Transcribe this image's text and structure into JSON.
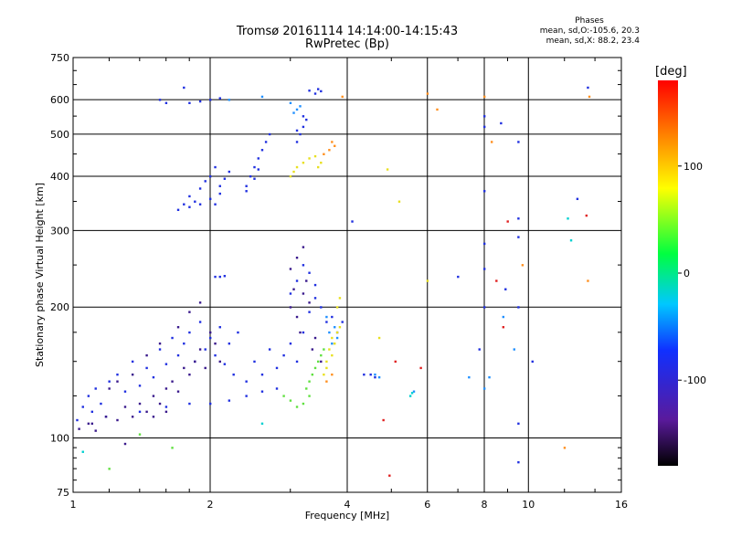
{
  "header": {
    "title_line1": "Tromsø 20161114 14:14:00-14:15:43",
    "title_line2": "RwPretec (Bp)"
  },
  "phases_box": {
    "title": "Phases",
    "line_o": "mean, sd,O:-105.6, 20.3",
    "line_x": "mean, sd,X:  88.2, 23.4"
  },
  "chart_data": {
    "type": "scatter",
    "xlabel": "Frequency [MHz]",
    "ylabel": "Stationary phase Virtual Height [km]",
    "x_scale": "log",
    "y_scale": "log",
    "xlim": [
      1,
      16
    ],
    "ylim": [
      75,
      750
    ],
    "x_ticks": [
      1,
      2,
      4,
      6,
      8,
      10,
      16
    ],
    "x_tick_labels": [
      "1",
      "2",
      "4",
      "6",
      "8",
      "10",
      "16"
    ],
    "y_ticks": [
      75,
      100,
      200,
      300,
      400,
      500,
      600,
      750
    ],
    "y_tick_labels": [
      "75",
      "100",
      "200",
      "300",
      "400",
      "500",
      "600",
      "750"
    ],
    "grid": true,
    "colorbar": {
      "label": "[deg]",
      "range": [
        -180,
        180
      ],
      "ticks": [
        100,
        0,
        -100
      ],
      "tick_labels": [
        "100",
        "0",
        "-100"
      ]
    },
    "series": [
      {
        "color": "#2030e0",
        "points": [
          [
            1.02,
            110
          ],
          [
            1.05,
            118
          ],
          [
            1.08,
            125
          ],
          [
            1.1,
            115
          ],
          [
            1.12,
            130
          ],
          [
            1.15,
            120
          ],
          [
            1.18,
            112
          ],
          [
            1.2,
            135
          ],
          [
            1.25,
            140
          ],
          [
            1.3,
            128
          ],
          [
            1.35,
            150
          ],
          [
            1.4,
            132
          ],
          [
            1.45,
            145
          ],
          [
            1.5,
            138
          ],
          [
            1.55,
            160
          ],
          [
            1.6,
            148
          ],
          [
            1.65,
            170
          ],
          [
            1.7,
            155
          ],
          [
            1.75,
            165
          ],
          [
            1.8,
            175
          ],
          [
            1.85,
            150
          ],
          [
            1.9,
            185
          ],
          [
            1.95,
            160
          ],
          [
            2.0,
            170
          ],
          [
            2.05,
            155
          ],
          [
            2.1,
            180
          ],
          [
            2.15,
            148
          ],
          [
            2.2,
            165
          ],
          [
            2.25,
            140
          ],
          [
            2.3,
            175
          ],
          [
            2.4,
            135
          ],
          [
            2.5,
            150
          ],
          [
            2.6,
            140
          ],
          [
            2.7,
            160
          ],
          [
            2.8,
            145
          ],
          [
            2.9,
            155
          ],
          [
            3.0,
            165
          ],
          [
            3.1,
            150
          ],
          [
            3.2,
            175
          ],
          [
            3.3,
            195
          ],
          [
            3.4,
            210
          ],
          [
            3.1,
            230
          ],
          [
            3.2,
            250
          ],
          [
            3.0,
            215
          ],
          [
            3.3,
            240
          ],
          [
            3.4,
            225
          ],
          [
            3.5,
            200
          ],
          [
            3.6,
            185
          ],
          [
            3.7,
            190
          ],
          [
            3.8,
            175
          ],
          [
            2.0,
            120
          ],
          [
            2.2,
            122
          ],
          [
            2.4,
            125
          ],
          [
            2.6,
            128
          ],
          [
            2.8,
            130
          ],
          [
            1.6,
            118
          ],
          [
            1.8,
            120
          ],
          [
            1.4,
            115
          ],
          [
            2.05,
            235
          ],
          [
            2.1,
            235
          ],
          [
            2.15,
            236
          ],
          [
            1.7,
            335
          ],
          [
            1.75,
            345
          ],
          [
            1.8,
            360
          ],
          [
            1.85,
            350
          ],
          [
            1.9,
            375
          ],
          [
            1.95,
            390
          ],
          [
            2.0,
            400
          ],
          [
            2.05,
            420
          ],
          [
            2.1,
            380
          ],
          [
            2.15,
            395
          ],
          [
            2.0,
            355
          ],
          [
            2.05,
            345
          ],
          [
            2.1,
            365
          ],
          [
            2.2,
            410
          ],
          [
            1.9,
            345
          ],
          [
            1.8,
            340
          ],
          [
            2.4,
            380
          ],
          [
            2.45,
            400
          ],
          [
            2.5,
            420
          ],
          [
            2.55,
            440
          ],
          [
            2.6,
            460
          ],
          [
            2.65,
            480
          ],
          [
            2.7,
            500
          ],
          [
            2.55,
            415
          ],
          [
            2.5,
            395
          ],
          [
            2.4,
            370
          ],
          [
            3.1,
            480
          ],
          [
            3.15,
            500
          ],
          [
            3.2,
            520
          ],
          [
            3.25,
            540
          ],
          [
            3.1,
            510
          ],
          [
            3.2,
            550
          ],
          [
            3.4,
            620
          ],
          [
            3.45,
            635
          ],
          [
            3.5,
            628
          ],
          [
            3.3,
            630
          ],
          [
            1.55,
            600
          ],
          [
            1.6,
            590
          ],
          [
            1.8,
            590
          ],
          [
            1.9,
            595
          ],
          [
            2.0,
            600
          ],
          [
            2.1,
            605
          ],
          [
            1.75,
            640
          ],
          [
            4.1,
            315
          ],
          [
            4.35,
            140
          ],
          [
            4.5,
            140
          ],
          [
            4.6,
            138
          ],
          [
            3.9,
            185
          ],
          [
            8.0,
            280
          ],
          [
            8.0,
            245
          ],
          [
            8.0,
            200
          ],
          [
            8.0,
            550
          ],
          [
            8.0,
            520
          ],
          [
            8.0,
            370
          ],
          [
            8.7,
            530
          ],
          [
            9.5,
            480
          ],
          [
            9.5,
            320
          ],
          [
            9.5,
            290
          ],
          [
            9.5,
            200
          ],
          [
            10.2,
            150
          ],
          [
            12.8,
            355
          ],
          [
            13.5,
            640
          ],
          [
            7.0,
            235
          ],
          [
            7.8,
            160
          ],
          [
            8.9,
            220
          ],
          [
            9.5,
            108
          ],
          [
            9.5,
            88
          ]
        ]
      },
      {
        "color": "#3a1a8c",
        "points": [
          [
            1.03,
            105
          ],
          [
            1.08,
            108
          ],
          [
            1.12,
            104
          ],
          [
            1.18,
            112
          ],
          [
            1.25,
            110
          ],
          [
            1.3,
            118
          ],
          [
            1.35,
            112
          ],
          [
            1.4,
            120
          ],
          [
            1.45,
            115
          ],
          [
            1.5,
            125
          ],
          [
            1.55,
            120
          ],
          [
            1.6,
            130
          ],
          [
            1.65,
            135
          ],
          [
            1.7,
            128
          ],
          [
            1.75,
            145
          ],
          [
            1.8,
            140
          ],
          [
            1.85,
            150
          ],
          [
            1.9,
            160
          ],
          [
            1.95,
            145
          ],
          [
            2.0,
            175
          ],
          [
            2.05,
            165
          ],
          [
            2.1,
            150
          ],
          [
            1.5,
            112
          ],
          [
            1.6,
            115
          ],
          [
            1.2,
            130
          ],
          [
            1.25,
            135
          ],
          [
            1.35,
            140
          ],
          [
            1.45,
            155
          ],
          [
            1.55,
            165
          ],
          [
            1.7,
            180
          ],
          [
            1.8,
            195
          ],
          [
            1.9,
            205
          ],
          [
            3.0,
            200
          ],
          [
            3.1,
            190
          ],
          [
            3.15,
            175
          ],
          [
            3.2,
            215
          ],
          [
            3.25,
            230
          ],
          [
            3.0,
            245
          ],
          [
            3.1,
            260
          ],
          [
            3.2,
            275
          ],
          [
            3.05,
            220
          ],
          [
            3.3,
            205
          ],
          [
            3.35,
            160
          ],
          [
            3.4,
            170
          ],
          [
            3.5,
            150
          ],
          [
            1.3,
            97
          ],
          [
            1.1,
            108
          ]
        ]
      },
      {
        "color": "#2090ff",
        "points": [
          [
            3.6,
            190
          ],
          [
            3.65,
            175
          ],
          [
            3.7,
            165
          ],
          [
            3.75,
            180
          ],
          [
            3.8,
            170
          ],
          [
            3.0,
            590
          ],
          [
            3.05,
            560
          ],
          [
            3.1,
            570
          ],
          [
            3.15,
            580
          ],
          [
            2.2,
            600
          ],
          [
            2.6,
            610
          ],
          [
            4.6,
            140
          ],
          [
            4.7,
            138
          ],
          [
            5.6,
            128
          ],
          [
            7.4,
            138
          ],
          [
            8.2,
            138
          ],
          [
            8.0,
            130
          ],
          [
            8.8,
            190
          ],
          [
            9.3,
            160
          ]
        ]
      },
      {
        "color": "#00d0d0",
        "points": [
          [
            5.5,
            125
          ],
          [
            5.55,
            127
          ],
          [
            2.6,
            108
          ],
          [
            1.05,
            93
          ],
          [
            12.2,
            320
          ],
          [
            12.4,
            285
          ]
        ]
      },
      {
        "color": "#60e040",
        "points": [
          [
            3.25,
            130
          ],
          [
            3.3,
            135
          ],
          [
            3.35,
            140
          ],
          [
            3.4,
            145
          ],
          [
            3.45,
            150
          ],
          [
            3.5,
            155
          ],
          [
            3.55,
            160
          ],
          [
            3.3,
            125
          ],
          [
            3.2,
            120
          ],
          [
            3.1,
            118
          ],
          [
            3.0,
            122
          ],
          [
            2.9,
            125
          ],
          [
            1.2,
            85
          ],
          [
            1.65,
            95
          ],
          [
            1.4,
            102
          ]
        ]
      },
      {
        "color": "#e8e020",
        "points": [
          [
            3.6,
            150
          ],
          [
            3.65,
            160
          ],
          [
            3.7,
            170
          ],
          [
            3.75,
            165
          ],
          [
            3.8,
            175
          ],
          [
            3.85,
            180
          ],
          [
            3.55,
            140
          ],
          [
            3.6,
            145
          ],
          [
            3.7,
            155
          ],
          [
            3.8,
            200
          ],
          [
            3.85,
            210
          ],
          [
            3.0,
            400
          ],
          [
            3.05,
            410
          ],
          [
            3.1,
            420
          ],
          [
            3.2,
            430
          ],
          [
            3.3,
            440
          ],
          [
            3.4,
            445
          ],
          [
            3.45,
            420
          ],
          [
            3.5,
            430
          ],
          [
            4.9,
            415
          ],
          [
            4.7,
            170
          ],
          [
            5.2,
            350
          ],
          [
            6.0,
            230
          ]
        ]
      },
      {
        "color": "#ff9020",
        "points": [
          [
            3.65,
            460
          ],
          [
            3.7,
            480
          ],
          [
            3.75,
            470
          ],
          [
            3.55,
            450
          ],
          [
            3.9,
            610
          ],
          [
            6.0,
            620
          ],
          [
            6.3,
            570
          ],
          [
            8.0,
            610
          ],
          [
            8.3,
            480
          ],
          [
            9.7,
            250
          ],
          [
            12.0,
            95
          ],
          [
            13.5,
            230
          ],
          [
            13.6,
            610
          ],
          [
            3.7,
            140
          ],
          [
            3.6,
            135
          ]
        ]
      },
      {
        "color": "#e02020",
        "points": [
          [
            4.95,
            82
          ],
          [
            5.8,
            145
          ],
          [
            8.5,
            230
          ],
          [
            9.0,
            315
          ],
          [
            13.4,
            325
          ],
          [
            5.1,
            150
          ],
          [
            4.8,
            110
          ],
          [
            8.8,
            180
          ]
        ]
      }
    ]
  }
}
